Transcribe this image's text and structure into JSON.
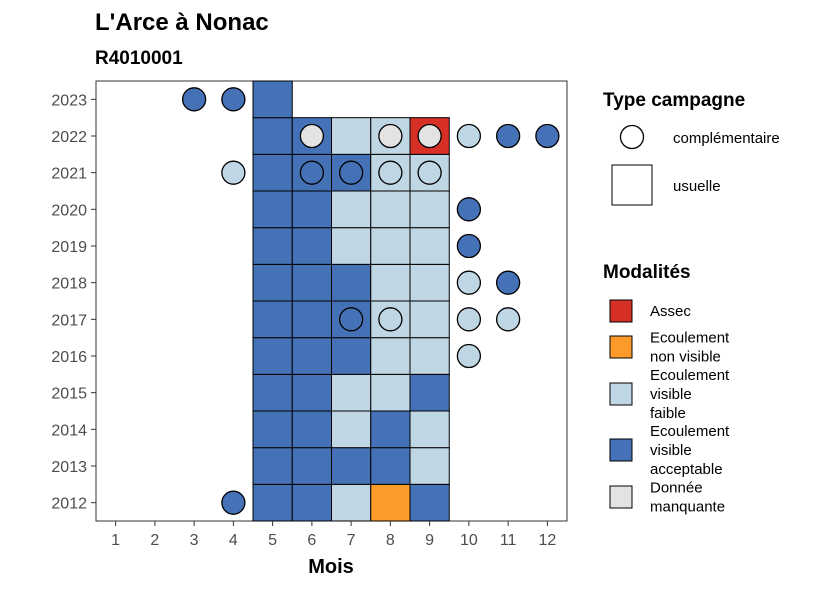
{
  "chart_data": {
    "type": "heatmap",
    "title": "L'Arce à Nonac",
    "subtitle": "R4010001",
    "xlabel": "Mois",
    "ylabel": "",
    "x_ticks": [
      1,
      2,
      3,
      4,
      5,
      6,
      7,
      8,
      9,
      10,
      11,
      12
    ],
    "y_ticks": [
      2012,
      2013,
      2014,
      2015,
      2016,
      2017,
      2018,
      2019,
      2020,
      2021,
      2022,
      2023
    ],
    "xlim": [
      0.5,
      12.5
    ],
    "ylim": [
      2011.5,
      2023.5
    ],
    "modalites": [
      {
        "key": "assec",
        "label": "Assec",
        "color": "#d73027"
      },
      {
        "key": "ecoul_nv",
        "label": "Ecoulement non visible",
        "color": "#fc9b2a"
      },
      {
        "key": "ecoul_vf",
        "label": "Ecoulement visible faible",
        "color": "#bfd6e5"
      },
      {
        "key": "ecoul_va",
        "label": "Ecoulement visible acceptable",
        "color": "#4572b6"
      },
      {
        "key": "nd",
        "label": "Donnée manquante",
        "color": "#e3e3e3"
      }
    ],
    "types_campagne": [
      {
        "key": "complementaire",
        "label": "complémentaire",
        "shape": "circle"
      },
      {
        "key": "usuelle",
        "label": "usuelle",
        "shape": "square"
      }
    ],
    "observations": [
      {
        "annee": 2012,
        "mois": 4,
        "type": "complementaire",
        "modalite": "ecoul_va"
      },
      {
        "annee": 2012,
        "mois": 5,
        "type": "usuelle",
        "modalite": "ecoul_va"
      },
      {
        "annee": 2012,
        "mois": 6,
        "type": "usuelle",
        "modalite": "ecoul_va"
      },
      {
        "annee": 2012,
        "mois": 7,
        "type": "usuelle",
        "modalite": "ecoul_vf"
      },
      {
        "annee": 2012,
        "mois": 8,
        "type": "usuelle",
        "modalite": "ecoul_nv"
      },
      {
        "annee": 2012,
        "mois": 9,
        "type": "usuelle",
        "modalite": "ecoul_va"
      },
      {
        "annee": 2013,
        "mois": 5,
        "type": "usuelle",
        "modalite": "ecoul_va"
      },
      {
        "annee": 2013,
        "mois": 6,
        "type": "usuelle",
        "modalite": "ecoul_va"
      },
      {
        "annee": 2013,
        "mois": 7,
        "type": "usuelle",
        "modalite": "ecoul_va"
      },
      {
        "annee": 2013,
        "mois": 8,
        "type": "usuelle",
        "modalite": "ecoul_va"
      },
      {
        "annee": 2013,
        "mois": 9,
        "type": "usuelle",
        "modalite": "ecoul_vf"
      },
      {
        "annee": 2014,
        "mois": 5,
        "type": "usuelle",
        "modalite": "ecoul_va"
      },
      {
        "annee": 2014,
        "mois": 6,
        "type": "usuelle",
        "modalite": "ecoul_va"
      },
      {
        "annee": 2014,
        "mois": 7,
        "type": "usuelle",
        "modalite": "ecoul_vf"
      },
      {
        "annee": 2014,
        "mois": 8,
        "type": "usuelle",
        "modalite": "ecoul_va"
      },
      {
        "annee": 2014,
        "mois": 9,
        "type": "usuelle",
        "modalite": "ecoul_vf"
      },
      {
        "annee": 2015,
        "mois": 5,
        "type": "usuelle",
        "modalite": "ecoul_va"
      },
      {
        "annee": 2015,
        "mois": 6,
        "type": "usuelle",
        "modalite": "ecoul_va"
      },
      {
        "annee": 2015,
        "mois": 7,
        "type": "usuelle",
        "modalite": "ecoul_vf"
      },
      {
        "annee": 2015,
        "mois": 8,
        "type": "usuelle",
        "modalite": "ecoul_vf"
      },
      {
        "annee": 2015,
        "mois": 9,
        "type": "usuelle",
        "modalite": "ecoul_va"
      },
      {
        "annee": 2016,
        "mois": 5,
        "type": "usuelle",
        "modalite": "ecoul_va"
      },
      {
        "annee": 2016,
        "mois": 6,
        "type": "usuelle",
        "modalite": "ecoul_va"
      },
      {
        "annee": 2016,
        "mois": 7,
        "type": "usuelle",
        "modalite": "ecoul_va"
      },
      {
        "annee": 2016,
        "mois": 8,
        "type": "usuelle",
        "modalite": "ecoul_vf"
      },
      {
        "annee": 2016,
        "mois": 9,
        "type": "usuelle",
        "modalite": "ecoul_vf"
      },
      {
        "annee": 2016,
        "mois": 10,
        "type": "complementaire",
        "modalite": "ecoul_vf"
      },
      {
        "annee": 2017,
        "mois": 5,
        "type": "usuelle",
        "modalite": "ecoul_va"
      },
      {
        "annee": 2017,
        "mois": 6,
        "type": "usuelle",
        "modalite": "ecoul_va"
      },
      {
        "annee": 2017,
        "mois": 7,
        "type": "usuelle",
        "modalite": "ecoul_va"
      },
      {
        "annee": 2017,
        "mois": 7,
        "type": "complementaire",
        "modalite": "ecoul_va"
      },
      {
        "annee": 2017,
        "mois": 8,
        "type": "usuelle",
        "modalite": "ecoul_vf"
      },
      {
        "annee": 2017,
        "mois": 8,
        "type": "complementaire",
        "modalite": "ecoul_vf"
      },
      {
        "annee": 2017,
        "mois": 9,
        "type": "usuelle",
        "modalite": "ecoul_vf"
      },
      {
        "annee": 2017,
        "mois": 10,
        "type": "complementaire",
        "modalite": "ecoul_vf"
      },
      {
        "annee": 2017,
        "mois": 11,
        "type": "complementaire",
        "modalite": "ecoul_vf"
      },
      {
        "annee": 2018,
        "mois": 5,
        "type": "usuelle",
        "modalite": "ecoul_va"
      },
      {
        "annee": 2018,
        "mois": 6,
        "type": "usuelle",
        "modalite": "ecoul_va"
      },
      {
        "annee": 2018,
        "mois": 7,
        "type": "usuelle",
        "modalite": "ecoul_va"
      },
      {
        "annee": 2018,
        "mois": 8,
        "type": "usuelle",
        "modalite": "ecoul_vf"
      },
      {
        "annee": 2018,
        "mois": 9,
        "type": "usuelle",
        "modalite": "ecoul_vf"
      },
      {
        "annee": 2018,
        "mois": 10,
        "type": "complementaire",
        "modalite": "ecoul_vf"
      },
      {
        "annee": 2018,
        "mois": 11,
        "type": "complementaire",
        "modalite": "ecoul_va"
      },
      {
        "annee": 2019,
        "mois": 5,
        "type": "usuelle",
        "modalite": "ecoul_va"
      },
      {
        "annee": 2019,
        "mois": 6,
        "type": "usuelle",
        "modalite": "ecoul_va"
      },
      {
        "annee": 2019,
        "mois": 7,
        "type": "usuelle",
        "modalite": "ecoul_vf"
      },
      {
        "annee": 2019,
        "mois": 8,
        "type": "usuelle",
        "modalite": "ecoul_vf"
      },
      {
        "annee": 2019,
        "mois": 9,
        "type": "usuelle",
        "modalite": "ecoul_vf"
      },
      {
        "annee": 2019,
        "mois": 10,
        "type": "complementaire",
        "modalite": "ecoul_va"
      },
      {
        "annee": 2020,
        "mois": 5,
        "type": "usuelle",
        "modalite": "ecoul_va"
      },
      {
        "annee": 2020,
        "mois": 6,
        "type": "usuelle",
        "modalite": "ecoul_va"
      },
      {
        "annee": 2020,
        "mois": 7,
        "type": "usuelle",
        "modalite": "ecoul_vf"
      },
      {
        "annee": 2020,
        "mois": 8,
        "type": "usuelle",
        "modalite": "ecoul_vf"
      },
      {
        "annee": 2020,
        "mois": 9,
        "type": "usuelle",
        "modalite": "ecoul_vf"
      },
      {
        "annee": 2020,
        "mois": 10,
        "type": "complementaire",
        "modalite": "ecoul_va"
      },
      {
        "annee": 2021,
        "mois": 4,
        "type": "complementaire",
        "modalite": "ecoul_vf"
      },
      {
        "annee": 2021,
        "mois": 5,
        "type": "usuelle",
        "modalite": "ecoul_va"
      },
      {
        "annee": 2021,
        "mois": 6,
        "type": "usuelle",
        "modalite": "ecoul_va"
      },
      {
        "annee": 2021,
        "mois": 6,
        "type": "complementaire",
        "modalite": "ecoul_va"
      },
      {
        "annee": 2021,
        "mois": 7,
        "type": "usuelle",
        "modalite": "ecoul_va"
      },
      {
        "annee": 2021,
        "mois": 7,
        "type": "complementaire",
        "modalite": "ecoul_va"
      },
      {
        "annee": 2021,
        "mois": 8,
        "type": "usuelle",
        "modalite": "ecoul_vf"
      },
      {
        "annee": 2021,
        "mois": 8,
        "type": "complementaire",
        "modalite": "ecoul_vf"
      },
      {
        "annee": 2021,
        "mois": 9,
        "type": "usuelle",
        "modalite": "ecoul_vf"
      },
      {
        "annee": 2021,
        "mois": 9,
        "type": "complementaire",
        "modalite": "ecoul_vf"
      },
      {
        "annee": 2022,
        "mois": 5,
        "type": "usuelle",
        "modalite": "ecoul_va"
      },
      {
        "annee": 2022,
        "mois": 6,
        "type": "usuelle",
        "modalite": "ecoul_va"
      },
      {
        "annee": 2022,
        "mois": 6,
        "type": "complementaire",
        "modalite": "nd"
      },
      {
        "annee": 2022,
        "mois": 7,
        "type": "usuelle",
        "modalite": "ecoul_vf"
      },
      {
        "annee": 2022,
        "mois": 8,
        "type": "usuelle",
        "modalite": "ecoul_vf"
      },
      {
        "annee": 2022,
        "mois": 8,
        "type": "complementaire",
        "modalite": "nd"
      },
      {
        "annee": 2022,
        "mois": 9,
        "type": "usuelle",
        "modalite": "assec"
      },
      {
        "annee": 2022,
        "mois": 9,
        "type": "complementaire",
        "modalite": "nd"
      },
      {
        "annee": 2022,
        "mois": 10,
        "type": "complementaire",
        "modalite": "ecoul_vf"
      },
      {
        "annee": 2022,
        "mois": 11,
        "type": "complementaire",
        "modalite": "ecoul_va"
      },
      {
        "annee": 2022,
        "mois": 12,
        "type": "complementaire",
        "modalite": "ecoul_va"
      },
      {
        "annee": 2023,
        "mois": 3,
        "type": "complementaire",
        "modalite": "ecoul_va"
      },
      {
        "annee": 2023,
        "mois": 4,
        "type": "complementaire",
        "modalite": "ecoul_va"
      },
      {
        "annee": 2023,
        "mois": 5,
        "type": "usuelle",
        "modalite": "ecoul_va"
      }
    ]
  },
  "legend": {
    "type_title": "Type campagne",
    "type_items": [
      "complémentaire",
      "usuelle"
    ],
    "mod_title": "Modalités",
    "mod_items": [
      [
        "Assec"
      ],
      [
        "Ecoulement",
        "non visible"
      ],
      [
        "Ecoulement",
        "visible",
        "faible"
      ],
      [
        "Ecoulement",
        "visible",
        "acceptable"
      ],
      [
        "Donnée",
        "manquante"
      ]
    ]
  }
}
